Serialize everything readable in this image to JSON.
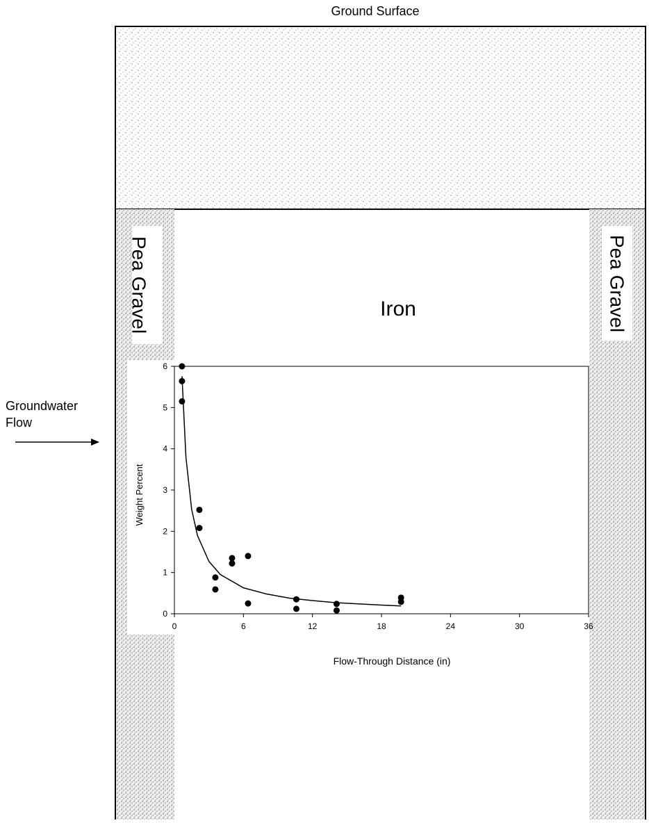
{
  "labels": {
    "ground_surface": "Ground Surface",
    "pea_gravel_left": "Pea Gravel",
    "pea_gravel_right": "Pea Gravel",
    "iron": "Iron",
    "groundwater_flow": "Groundwater Flow"
  },
  "chart_data": {
    "type": "scatter",
    "x_label": "Flow-Through Distance (in)",
    "y_label": "Weight Percent",
    "x": [
      0.66,
      0.66,
      0.66,
      2.17,
      2.17,
      3.56,
      3.56,
      5.01,
      5.01,
      6.4,
      6.4,
      10.6,
      10.6,
      14.1,
      14.1,
      19.7,
      19.7
    ],
    "values": [
      6.0,
      5.64,
      5.15,
      2.52,
      2.08,
      0.88,
      0.59,
      1.35,
      1.22,
      1.4,
      0.25,
      0.35,
      0.12,
      0.24,
      0.08,
      0.39,
      0.29
    ],
    "color": "#000000",
    "curve": {
      "x": [
        0.66,
        1,
        1.5,
        2,
        3,
        4,
        6,
        8,
        10,
        12,
        14,
        16,
        18,
        19.7
      ],
      "values": [
        5.76,
        3.8,
        2.53,
        1.9,
        1.27,
        0.95,
        0.63,
        0.48,
        0.38,
        0.32,
        0.27,
        0.24,
        0.21,
        0.19
      ]
    },
    "xlim": [
      0,
      36
    ],
    "xticks": [
      0,
      6,
      12,
      18,
      24,
      30,
      36
    ],
    "ylim": [
      0,
      6
    ],
    "yticks": [
      0,
      1,
      2,
      3,
      4,
      5,
      6
    ]
  }
}
